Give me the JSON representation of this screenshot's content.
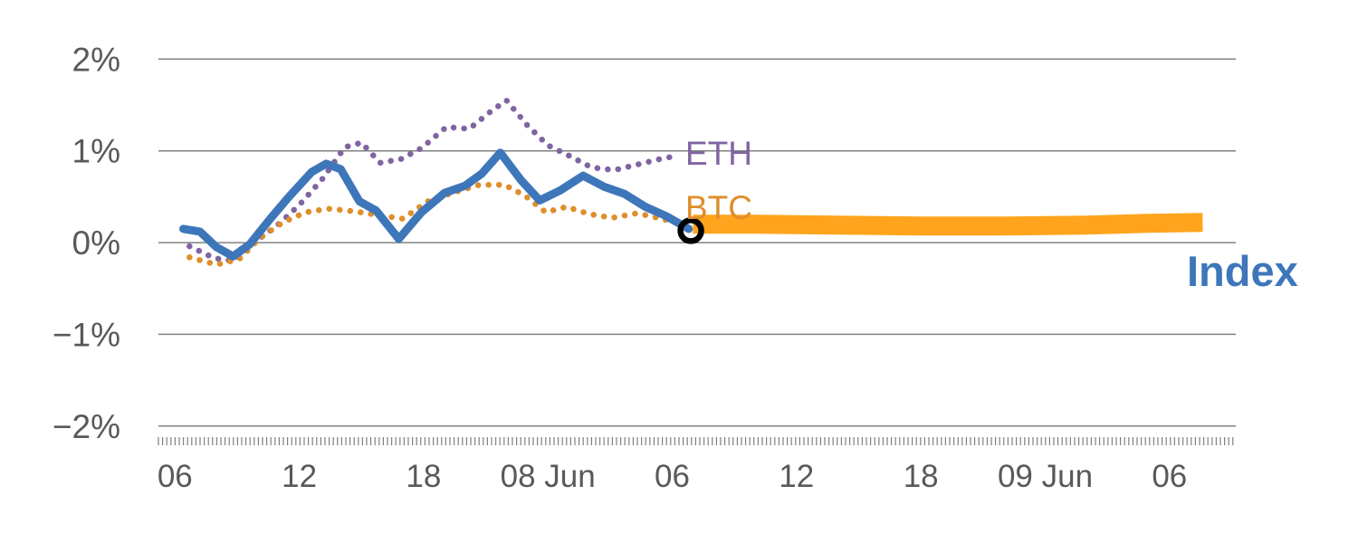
{
  "chart_data": {
    "type": "line",
    "title": "",
    "xlabel": "",
    "ylabel": "",
    "x_axis": {
      "unit": "hours",
      "range": [
        5.2,
        57.2
      ],
      "ticks": [
        6,
        12,
        18,
        24,
        30,
        36,
        42,
        48,
        54
      ],
      "tick_labels": [
        "06",
        "12",
        "18",
        "08 Jun",
        "06",
        "12",
        "18",
        "09 Jun",
        "06"
      ]
    },
    "y_axis": {
      "range": [
        -2.15,
        2.25
      ],
      "ticks": [
        2,
        1,
        0,
        -1,
        -2
      ],
      "tick_labels": [
        "2%",
        "1%",
        "0%",
        "−1%",
        "−2%"
      ],
      "grid": true
    },
    "colors": {
      "grid": "#808080",
      "axis_text": "#595959",
      "index_blue": "#3e76ba",
      "btc_orange": "#df8e2a",
      "eth_purple": "#8064a2",
      "band_orange": "#ffa41c",
      "marker_black": "#000000"
    },
    "series": [
      {
        "name": "ETH",
        "color": "#8064a2",
        "style": "dotted",
        "width": 6.5,
        "points": [
          [
            6.7,
            -0.04
          ],
          [
            7.9,
            -0.17
          ],
          [
            8.8,
            -0.2
          ],
          [
            9.8,
            0.0
          ],
          [
            10.9,
            0.18
          ],
          [
            12.0,
            0.41
          ],
          [
            13.1,
            0.69
          ],
          [
            14.2,
            1.04
          ],
          [
            15.0,
            1.09
          ],
          [
            15.9,
            0.87
          ],
          [
            16.9,
            0.91
          ],
          [
            17.9,
            1.03
          ],
          [
            19.1,
            1.26
          ],
          [
            20.2,
            1.24
          ],
          [
            21.3,
            1.44
          ],
          [
            22.0,
            1.55
          ],
          [
            23.0,
            1.28
          ],
          [
            24.0,
            1.06
          ],
          [
            25.0,
            0.95
          ],
          [
            26.1,
            0.82
          ],
          [
            27.2,
            0.79
          ],
          [
            28.3,
            0.85
          ],
          [
            29.4,
            0.91
          ],
          [
            30.3,
            0.95
          ]
        ]
      },
      {
        "name": "BTC",
        "color": "#df8e2a",
        "style": "dotted",
        "width": 6.5,
        "points": [
          [
            6.7,
            -0.16
          ],
          [
            8.0,
            -0.24
          ],
          [
            9.1,
            -0.18
          ],
          [
            10.1,
            0.05
          ],
          [
            11.2,
            0.22
          ],
          [
            12.3,
            0.33
          ],
          [
            13.4,
            0.37
          ],
          [
            14.7,
            0.34
          ],
          [
            15.8,
            0.3
          ],
          [
            17.0,
            0.26
          ],
          [
            18.2,
            0.45
          ],
          [
            19.5,
            0.55
          ],
          [
            20.7,
            0.63
          ],
          [
            21.9,
            0.63
          ],
          [
            22.9,
            0.51
          ],
          [
            23.9,
            0.33
          ],
          [
            24.9,
            0.39
          ],
          [
            26.0,
            0.31
          ],
          [
            27.1,
            0.27
          ],
          [
            28.3,
            0.32
          ],
          [
            29.3,
            0.27
          ],
          [
            30.5,
            0.2
          ]
        ]
      },
      {
        "name": "Index",
        "color": "#3e76ba",
        "style": "solid",
        "width": 9,
        "points": [
          [
            6.4,
            0.15
          ],
          [
            7.2,
            0.12
          ],
          [
            8.0,
            -0.05
          ],
          [
            8.8,
            -0.15
          ],
          [
            9.6,
            -0.02
          ],
          [
            10.6,
            0.26
          ],
          [
            11.5,
            0.5
          ],
          [
            12.6,
            0.77
          ],
          [
            13.3,
            0.86
          ],
          [
            14.0,
            0.8
          ],
          [
            14.9,
            0.45
          ],
          [
            15.7,
            0.35
          ],
          [
            16.8,
            0.04
          ],
          [
            17.9,
            0.33
          ],
          [
            19.0,
            0.54
          ],
          [
            20.0,
            0.62
          ],
          [
            20.8,
            0.75
          ],
          [
            21.7,
            0.98
          ],
          [
            22.7,
            0.68
          ],
          [
            23.6,
            0.46
          ],
          [
            24.6,
            0.57
          ],
          [
            25.7,
            0.73
          ],
          [
            26.7,
            0.61
          ],
          [
            27.7,
            0.53
          ],
          [
            28.7,
            0.39
          ],
          [
            29.7,
            0.29
          ],
          [
            30.8,
            0.15
          ]
        ]
      },
      {
        "name": "Index projection",
        "color": "#ffa41c",
        "style": "band",
        "width": 21,
        "points": [
          [
            31.0,
            0.2
          ],
          [
            34.0,
            0.2
          ],
          [
            38.0,
            0.19
          ],
          [
            42.0,
            0.18
          ],
          [
            46.0,
            0.18
          ],
          [
            50.0,
            0.19
          ],
          [
            53.0,
            0.21
          ],
          [
            55.6,
            0.22
          ]
        ]
      }
    ],
    "marker": {
      "shape": "open-circle",
      "x": 30.9,
      "y": 0.13,
      "color": "#000000"
    },
    "labels": {
      "eth": "ETH",
      "btc": "BTC",
      "index": "Index"
    }
  }
}
